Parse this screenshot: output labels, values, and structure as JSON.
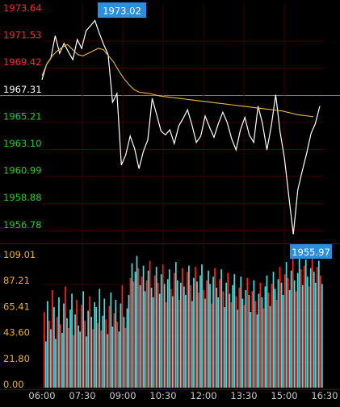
{
  "chart_data": {
    "type": "line",
    "price_panel": {
      "y_ticks": [
        "1973.64",
        "1971.53",
        "1969.42",
        "1967.31",
        "1965.21",
        "1963.10",
        "1960.99",
        "1958.88",
        "1956.78"
      ],
      "ylim": [
        1955.5,
        1974.4
      ],
      "reference_price": 1967.31,
      "high_label": "1973.02",
      "low_label": "1955.97",
      "price_series": [
        1968.3,
        1969.5,
        1970.0,
        1971.8,
        1970.4,
        1971.2,
        1970.5,
        1969.9,
        1971.5,
        1970.8,
        1972.2,
        1972.6,
        1973.02,
        1972.0,
        1971.1,
        1970.3,
        1966.5,
        1967.2,
        1961.5,
        1962.3,
        1963.8,
        1962.8,
        1961.2,
        1962.6,
        1963.5,
        1966.8,
        1965.5,
        1964.2,
        1963.9,
        1964.3,
        1963.2,
        1964.6,
        1965.2,
        1965.9,
        1964.7,
        1963.3,
        1963.8,
        1965.4,
        1964.5,
        1963.7,
        1964.8,
        1965.7,
        1964.9,
        1963.6,
        1962.7,
        1964.3,
        1965.3,
        1963.9,
        1963.3,
        1966.2,
        1964.8,
        1962.7,
        1964.6,
        1967.1,
        1964.1,
        1962.0,
        1958.9,
        1955.97,
        1959.5,
        1961.0,
        1962.4,
        1964.0,
        1964.8,
        1966.2
      ],
      "avg_series": [
        1968.6,
        1969.6,
        1970.2,
        1970.6,
        1970.9,
        1971.1,
        1970.7,
        1970.3,
        1970.2,
        1970.4,
        1970.6,
        1970.8,
        1970.7,
        1970.2,
        1969.7,
        1969.0,
        1968.4,
        1967.9,
        1967.5,
        1967.3,
        1967.25,
        1967.2,
        1967.1,
        1967.0,
        1966.95,
        1966.9,
        1966.85,
        1966.8,
        1966.75,
        1966.7,
        1966.65,
        1966.6,
        1966.55,
        1966.5,
        1966.45,
        1966.4,
        1966.35,
        1966.3,
        1966.25,
        1966.2,
        1966.15,
        1966.1,
        1966.05,
        1966.0,
        1965.95,
        1965.9,
        1965.85,
        1965.8,
        1965.7,
        1965.6,
        1965.5,
        1965.45,
        1965.4,
        1965.35
      ]
    },
    "volume_panel": {
      "y_ticks": [
        "109.01",
        "87.21",
        "65.41",
        "43.60",
        "21.80",
        "0.00"
      ],
      "ylim": [
        0,
        109.01
      ],
      "values": [
        62,
        38,
        71,
        55,
        48,
        80,
        66,
        40,
        58,
        74,
        52,
        45,
        69,
        83,
        57,
        49,
        64,
        77,
        43,
        60,
        72,
        51,
        46,
        68,
        79,
        55,
        42,
        63,
        75,
        58,
        48,
        70,
        66,
        53,
        81,
        47,
        59,
        73,
        56,
        44,
        67,
        78,
        50,
        61,
        72,
        54,
        46,
        69,
        84,
        58,
        49,
        65,
        76,
        90,
        102,
        87,
        95,
        108,
        98,
        84,
        91,
        100,
        79,
        88,
        96,
        104,
        82,
        74,
        92,
        99,
        86,
        77,
        93,
        101,
        85,
        70,
        89,
        97,
        81,
        75,
        94,
        103,
        88,
        72,
        86,
        98,
        83,
        76,
        95,
        100,
        84,
        71,
        90,
        99,
        87,
        78,
        92,
        101,
        80,
        73,
        88,
        96,
        85,
        69,
        91,
        98,
        82,
        74,
        89,
        97,
        79,
        66,
        86,
        94,
        77,
        70,
        84,
        93,
        75,
        64,
        82,
        91,
        73,
        68,
        80,
        90,
        76,
        62,
        79,
        88,
        71,
        60,
        77,
        86,
        74,
        65,
        83,
        92,
        78,
        67,
        85,
        95,
        81,
        72,
        89,
        99,
        86,
        76,
        93,
        103,
        90,
        80,
        96,
        106,
        88,
        79,
        94,
        108,
        97,
        84,
        100,
        105,
        91,
        83,
        98,
        107,
        95,
        86,
        99,
        104,
        92,
        85
      ],
      "colors": [
        "#ff2020",
        "#40e0e0",
        "#40e0e0",
        "#ff2020",
        "#40e0e0"
      ]
    },
    "x_tick_labels": [
      "06:00",
      "07:30",
      "09:00",
      "10:30",
      "12:00",
      "13:30",
      "15:00",
      "16:30"
    ],
    "grid": true,
    "colors": {
      "background": "#000000",
      "price_line": "#ffffff",
      "avg_line": "#e8b84a",
      "up_axis_label": "#ff2a2a",
      "ref_axis_label": "#ffffff",
      "down_axis_label": "#22d022",
      "volume_axis_label": "#f0b020",
      "time_label": "#c8c8c8",
      "grid": "#3a0000",
      "highlight_label_bg": "#2b8fe0",
      "volume_up": "#ff2020",
      "volume_down": "#40e0e0"
    }
  }
}
